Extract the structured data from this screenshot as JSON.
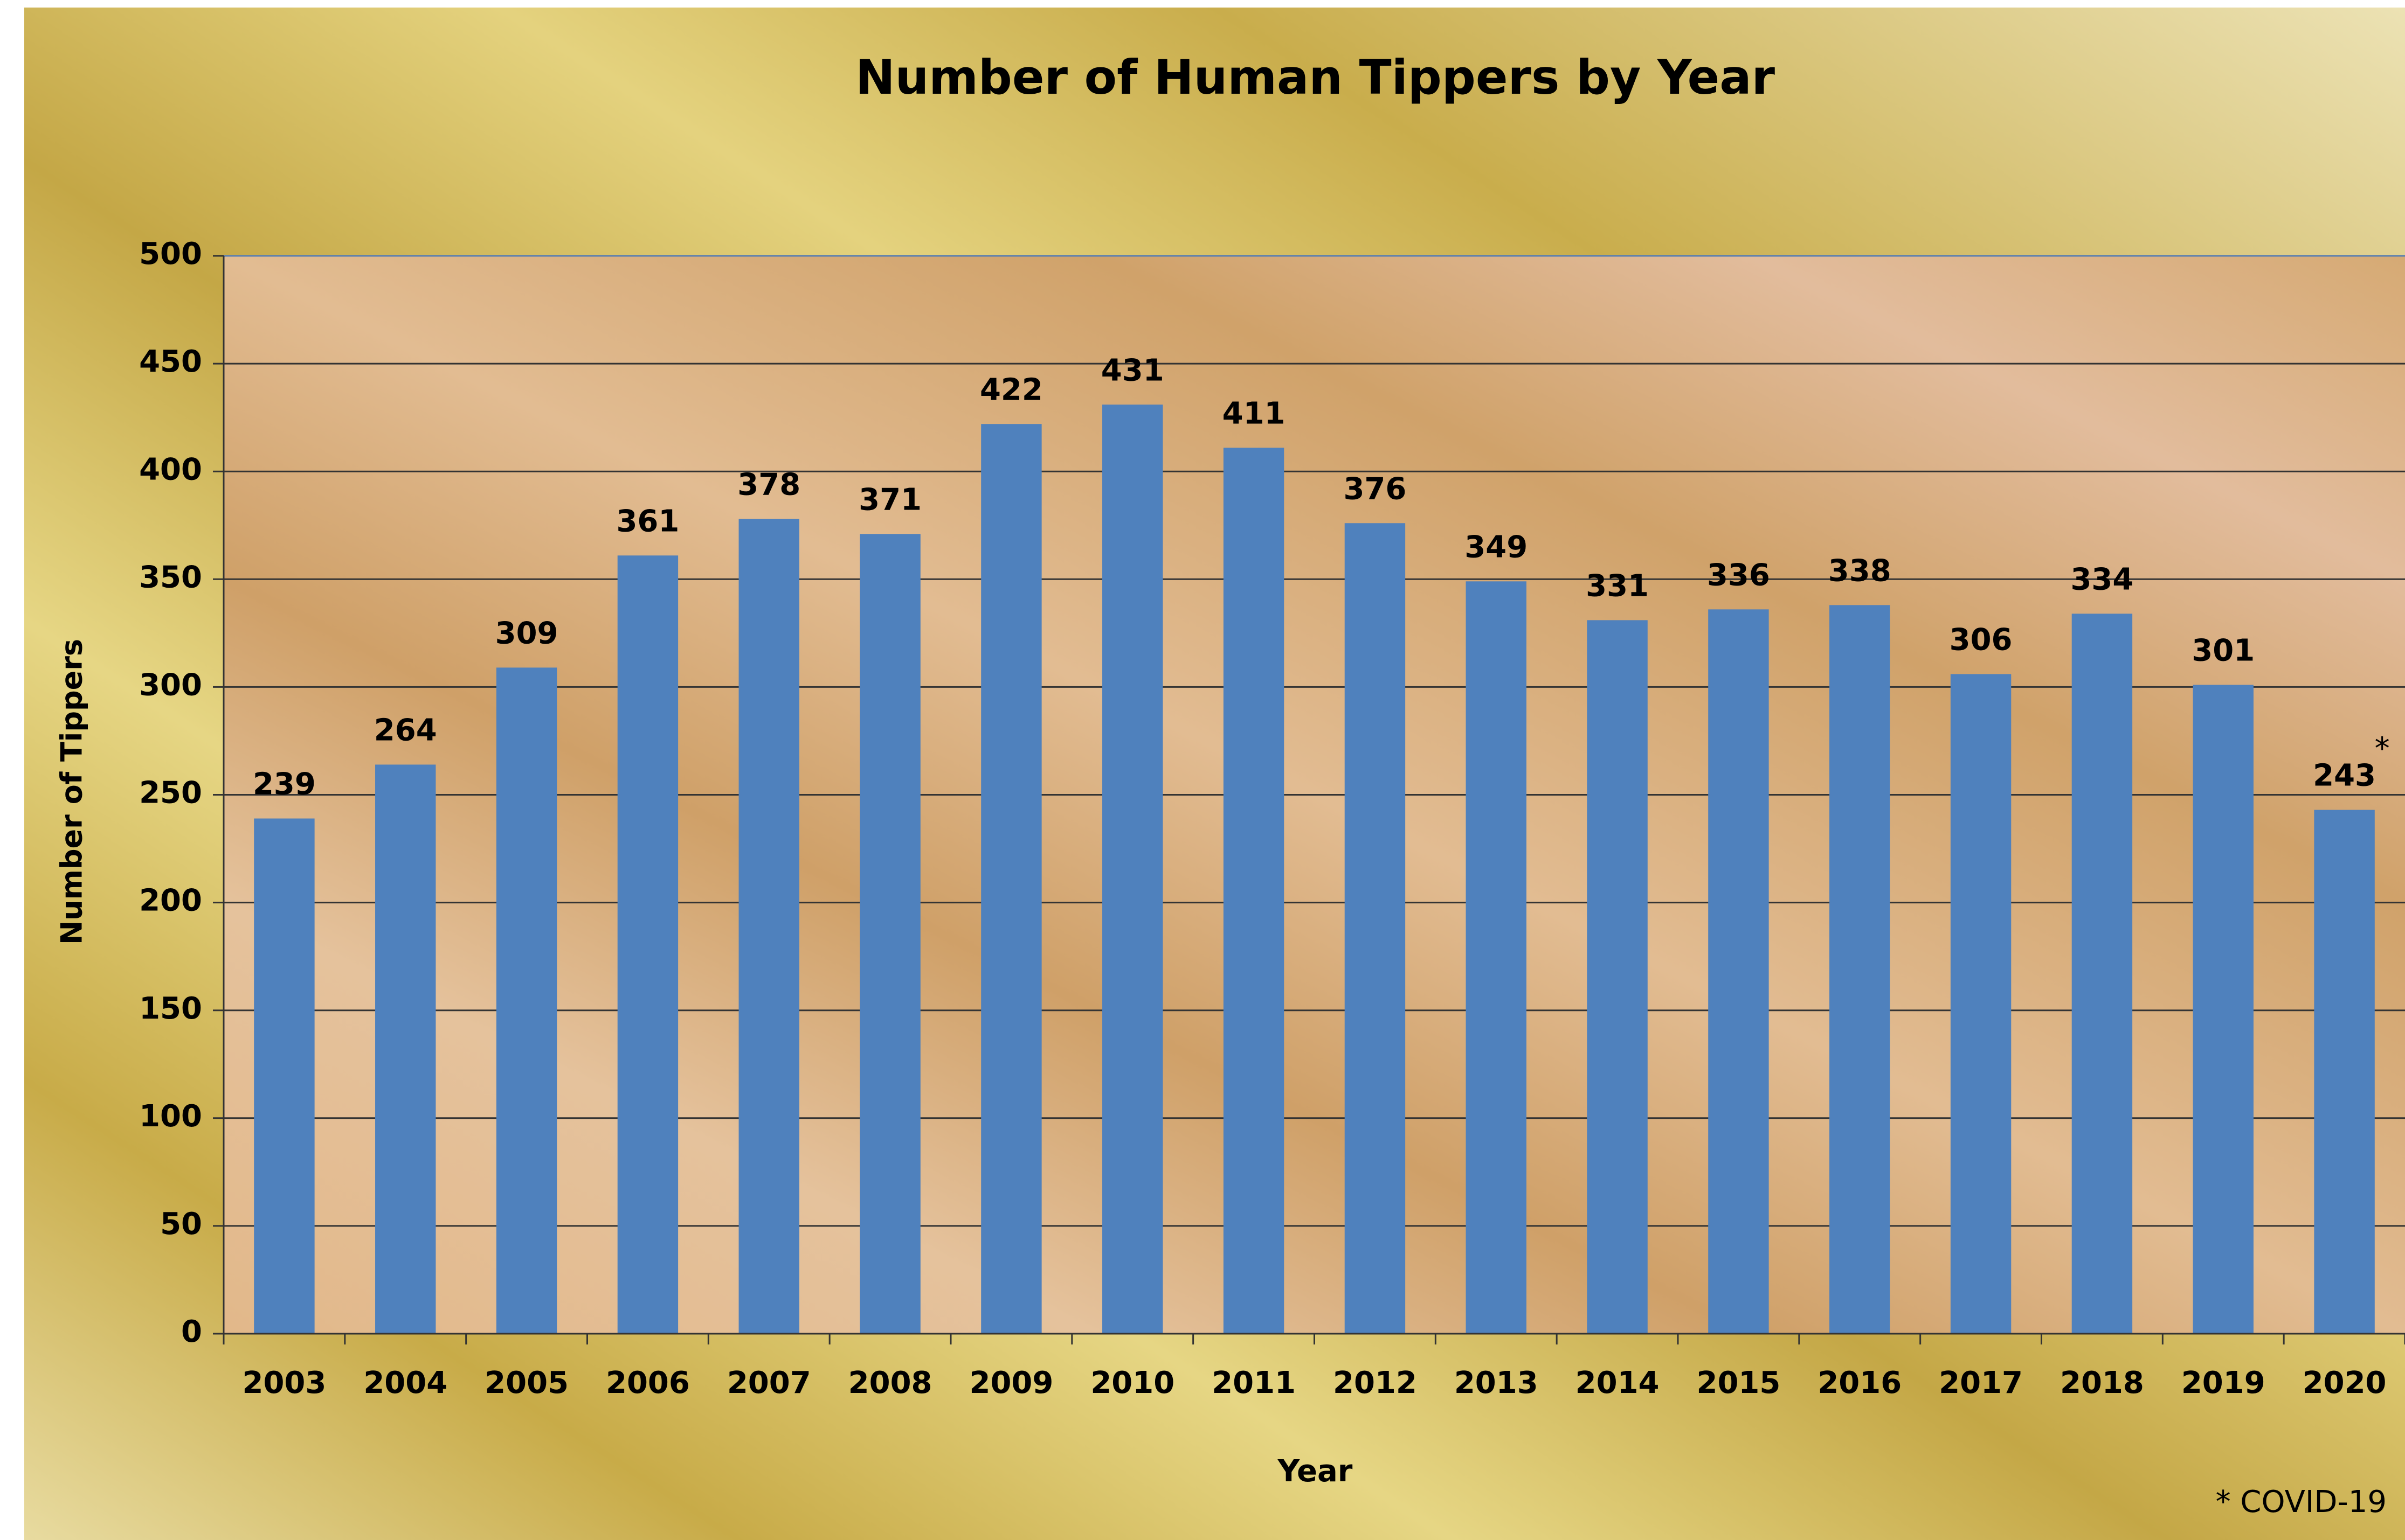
{
  "chart_data": {
    "type": "bar",
    "title": "Number of Human Tippers by Year",
    "x_label": "Year",
    "y_label": "Number of Tippers",
    "categories": [
      "2003",
      "2004",
      "2005",
      "2006",
      "2007",
      "2008",
      "2009",
      "2010",
      "2011",
      "2012",
      "2013",
      "2014",
      "2015",
      "2016",
      "2017",
      "2018",
      "2019",
      "2020"
    ],
    "values": [
      239,
      264,
      309,
      361,
      378,
      371,
      422,
      431,
      411,
      376,
      349,
      331,
      336,
      338,
      306,
      334,
      301,
      243
    ],
    "color": "#4f81bd",
    "ylim": [
      0,
      500
    ],
    "yticks": [
      0,
      50,
      100,
      150,
      200,
      250,
      300,
      350,
      400,
      450,
      500
    ],
    "grid": true,
    "annotation": "*",
    "footnote": "* COVID-19"
  }
}
